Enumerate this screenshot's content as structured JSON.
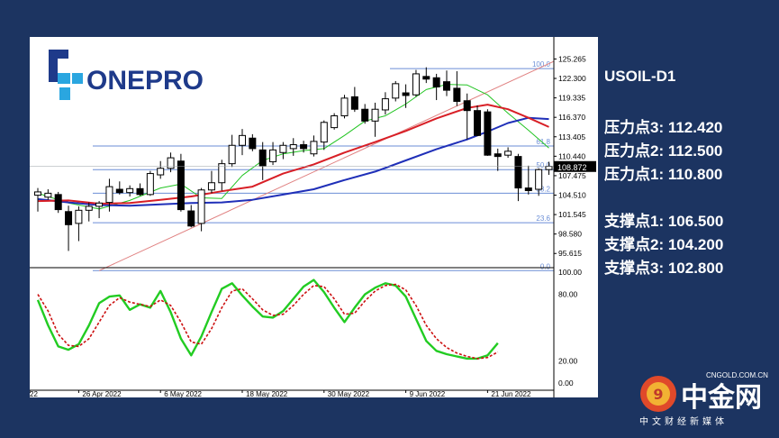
{
  "brand": {
    "logo_text": "ONEPRO"
  },
  "title": "USOIL-D1",
  "resistance": [
    {
      "label": "压力点3: 112.420"
    },
    {
      "label": "压力点2: 112.500"
    },
    {
      "label": "压力点1: 110.800"
    }
  ],
  "support": [
    {
      "label": "支撑点1: 106.500"
    },
    {
      "label": "支撑点2: 104.200"
    },
    {
      "label": "支撑点3: 102.800"
    }
  ],
  "watermark": {
    "name": "中金网",
    "url": "CNGOLD.COM.CN",
    "subtitle": "中文财经新媒体"
  },
  "colors": {
    "background": "#1c3461",
    "ma_fast": "#22c422",
    "ma_mid": "#d81f26",
    "ma_slow": "#1f2fb8",
    "fib": "#6b8ed6",
    "trend": "#e08080",
    "stoch_main": "#22cc22",
    "stoch_signal": "#cc1111"
  },
  "chart_data": [
    {
      "type": "candlestick",
      "symbol": "USOIL",
      "timeframe": "D1",
      "y_ticks": [
        "125.265",
        "122.300",
        "119.335",
        "116.370",
        "113.405",
        "110.440",
        "107.475",
        "104.510",
        "101.545",
        "98.580",
        "95.615"
      ],
      "ylim": [
        94.0,
        126.7
      ],
      "x_labels": [
        "22",
        "26 Apr 2022",
        "6 May 2022",
        "18 May 2022",
        "30 May 2022",
        "9 Jun 2022",
        "21 Jun 2022"
      ],
      "x_label_index": [
        0,
        4,
        12,
        20,
        28,
        36,
        44
      ],
      "current_price": "108.872",
      "candles": [
        {
          "o": 104.5,
          "h": 105.6,
          "l": 102.0,
          "c": 105.0
        },
        {
          "o": 104.2,
          "h": 105.4,
          "l": 103.8,
          "c": 104.8
        },
        {
          "o": 104.6,
          "h": 105.0,
          "l": 101.8,
          "c": 102.3
        },
        {
          "o": 102.0,
          "h": 102.9,
          "l": 96.0,
          "c": 100.0
        },
        {
          "o": 100.2,
          "h": 102.8,
          "l": 97.5,
          "c": 102.2
        },
        {
          "o": 102.2,
          "h": 103.4,
          "l": 100.5,
          "c": 102.8
        },
        {
          "o": 102.8,
          "h": 103.6,
          "l": 101.0,
          "c": 103.3
        },
        {
          "o": 103.4,
          "h": 107.0,
          "l": 102.0,
          "c": 105.8
        },
        {
          "o": 105.4,
          "h": 106.6,
          "l": 104.6,
          "c": 104.9
        },
        {
          "o": 104.9,
          "h": 106.0,
          "l": 104.3,
          "c": 105.5
        },
        {
          "o": 105.5,
          "h": 106.3,
          "l": 104.4,
          "c": 104.6
        },
        {
          "o": 104.6,
          "h": 108.2,
          "l": 104.4,
          "c": 107.8
        },
        {
          "o": 107.6,
          "h": 109.7,
          "l": 107.0,
          "c": 108.6
        },
        {
          "o": 108.6,
          "h": 111.0,
          "l": 108.0,
          "c": 110.2
        },
        {
          "o": 109.7,
          "h": 110.8,
          "l": 102.0,
          "c": 102.3
        },
        {
          "o": 102.1,
          "h": 103.0,
          "l": 99.6,
          "c": 99.8
        },
        {
          "o": 100.2,
          "h": 105.6,
          "l": 99.0,
          "c": 105.3
        },
        {
          "o": 105.3,
          "h": 108.2,
          "l": 104.8,
          "c": 106.4
        },
        {
          "o": 106.4,
          "h": 109.9,
          "l": 105.2,
          "c": 109.3
        },
        {
          "o": 109.3,
          "h": 113.7,
          "l": 108.8,
          "c": 112.1
        },
        {
          "o": 112.1,
          "h": 114.6,
          "l": 110.6,
          "c": 113.6
        },
        {
          "o": 113.2,
          "h": 113.8,
          "l": 111.2,
          "c": 111.6
        },
        {
          "o": 111.4,
          "h": 112.6,
          "l": 106.8,
          "c": 109.0
        },
        {
          "o": 109.6,
          "h": 112.6,
          "l": 109.1,
          "c": 111.4
        },
        {
          "o": 111.0,
          "h": 112.6,
          "l": 110.0,
          "c": 112.1
        },
        {
          "o": 111.6,
          "h": 113.2,
          "l": 110.5,
          "c": 112.2
        },
        {
          "o": 112.2,
          "h": 112.8,
          "l": 111.0,
          "c": 111.6
        },
        {
          "o": 110.8,
          "h": 113.6,
          "l": 110.4,
          "c": 112.7
        },
        {
          "o": 112.6,
          "h": 115.9,
          "l": 111.4,
          "c": 115.6
        },
        {
          "o": 114.8,
          "h": 117.0,
          "l": 114.5,
          "c": 116.6
        },
        {
          "o": 116.6,
          "h": 119.8,
          "l": 116.2,
          "c": 119.3
        },
        {
          "o": 119.5,
          "h": 121.0,
          "l": 117.2,
          "c": 117.6
        },
        {
          "o": 117.6,
          "h": 118.4,
          "l": 115.4,
          "c": 115.8
        },
        {
          "o": 115.8,
          "h": 118.6,
          "l": 113.4,
          "c": 117.6
        },
        {
          "o": 117.5,
          "h": 120.2,
          "l": 116.8,
          "c": 119.2
        },
        {
          "o": 119.3,
          "h": 121.9,
          "l": 118.8,
          "c": 121.5
        },
        {
          "o": 120.1,
          "h": 121.4,
          "l": 117.8,
          "c": 119.7
        },
        {
          "o": 119.8,
          "h": 123.6,
          "l": 119.5,
          "c": 123.0
        },
        {
          "o": 122.6,
          "h": 124.0,
          "l": 121.6,
          "c": 122.2
        },
        {
          "o": 122.4,
          "h": 123.0,
          "l": 119.0,
          "c": 121.0
        },
        {
          "o": 121.8,
          "h": 123.5,
          "l": 119.6,
          "c": 120.5
        },
        {
          "o": 120.8,
          "h": 123.4,
          "l": 118.1,
          "c": 118.8
        },
        {
          "o": 118.9,
          "h": 120.0,
          "l": 113.0,
          "c": 117.4
        },
        {
          "o": 117.4,
          "h": 118.2,
          "l": 113.5,
          "c": 113.6
        },
        {
          "o": 117.2,
          "h": 117.6,
          "l": 110.5,
          "c": 110.6
        },
        {
          "o": 110.8,
          "h": 111.6,
          "l": 108.2,
          "c": 110.4
        },
        {
          "o": 110.6,
          "h": 111.8,
          "l": 110.2,
          "c": 111.2
        },
        {
          "o": 110.4,
          "h": 110.8,
          "l": 103.6,
          "c": 105.6
        },
        {
          "o": 105.6,
          "h": 109.0,
          "l": 104.6,
          "c": 105.2
        },
        {
          "o": 105.4,
          "h": 108.6,
          "l": 104.4,
          "c": 108.4
        },
        {
          "o": 108.4,
          "h": 109.6,
          "l": 107.6,
          "c": 108.9
        }
      ],
      "ma_fast": [
        {
          "i": 0,
          "v": 104.8
        },
        {
          "i": 3,
          "v": 103.3
        },
        {
          "i": 6,
          "v": 102.4
        },
        {
          "i": 9,
          "v": 103.7
        },
        {
          "i": 12,
          "v": 105.6
        },
        {
          "i": 14,
          "v": 106.2
        },
        {
          "i": 16,
          "v": 104.1
        },
        {
          "i": 18,
          "v": 104.0
        },
        {
          "i": 20,
          "v": 107.5
        },
        {
          "i": 22,
          "v": 109.8
        },
        {
          "i": 24,
          "v": 110.8
        },
        {
          "i": 26,
          "v": 111.3
        },
        {
          "i": 28,
          "v": 111.6
        },
        {
          "i": 30,
          "v": 113.6
        },
        {
          "i": 32,
          "v": 115.8
        },
        {
          "i": 34,
          "v": 116.6
        },
        {
          "i": 36,
          "v": 118.4
        },
        {
          "i": 38,
          "v": 120.6
        },
        {
          "i": 40,
          "v": 121.4
        },
        {
          "i": 42,
          "v": 121.3
        },
        {
          "i": 44,
          "v": 119.8
        },
        {
          "i": 46,
          "v": 117.0
        },
        {
          "i": 48,
          "v": 114.4
        },
        {
          "i": 50,
          "v": 111.7
        }
      ],
      "ma_mid": [
        {
          "i": 0,
          "v": 103.6
        },
        {
          "i": 3,
          "v": 103.7
        },
        {
          "i": 6,
          "v": 103.2
        },
        {
          "i": 9,
          "v": 103.3
        },
        {
          "i": 12,
          "v": 103.8
        },
        {
          "i": 15,
          "v": 104.3
        },
        {
          "i": 18,
          "v": 105.1
        },
        {
          "i": 21,
          "v": 105.8
        },
        {
          "i": 24,
          "v": 107.8
        },
        {
          "i": 27,
          "v": 109.2
        },
        {
          "i": 30,
          "v": 111.0
        },
        {
          "i": 33,
          "v": 112.6
        },
        {
          "i": 36,
          "v": 114.3
        },
        {
          "i": 39,
          "v": 116.2
        },
        {
          "i": 42,
          "v": 117.8
        },
        {
          "i": 44,
          "v": 118.3
        },
        {
          "i": 46,
          "v": 117.6
        },
        {
          "i": 48,
          "v": 116.3
        },
        {
          "i": 50,
          "v": 114.9
        }
      ],
      "ma_slow": [
        {
          "i": 0,
          "v": 103.9
        },
        {
          "i": 3,
          "v": 103.4
        },
        {
          "i": 6,
          "v": 103.0
        },
        {
          "i": 9,
          "v": 102.9
        },
        {
          "i": 12,
          "v": 103.1
        },
        {
          "i": 15,
          "v": 103.3
        },
        {
          "i": 18,
          "v": 103.4
        },
        {
          "i": 21,
          "v": 103.8
        },
        {
          "i": 24,
          "v": 104.6
        },
        {
          "i": 27,
          "v": 105.4
        },
        {
          "i": 30,
          "v": 106.8
        },
        {
          "i": 33,
          "v": 108.1
        },
        {
          "i": 36,
          "v": 109.8
        },
        {
          "i": 39,
          "v": 111.5
        },
        {
          "i": 42,
          "v": 113.0
        },
        {
          "i": 44,
          "v": 114.2
        },
        {
          "i": 46,
          "v": 115.5
        },
        {
          "i": 48,
          "v": 116.3
        },
        {
          "i": 50,
          "v": 116.1
        }
      ],
      "fibonacci": [
        {
          "label": "100.0",
          "value": 123.8
        },
        {
          "label": "61.8",
          "value": 112.0
        },
        {
          "label": "50.0",
          "value": 108.4
        },
        {
          "label": "38.2",
          "value": 104.8
        },
        {
          "label": "23.6",
          "value": 100.3
        },
        {
          "label": "0.0",
          "value": 93.0
        }
      ],
      "trendline": [
        {
          "i": 6,
          "v": 93.0
        },
        {
          "i": 50,
          "v": 123.8
        }
      ]
    },
    {
      "type": "line",
      "name": "stochastic",
      "y_ticks": [
        "100.00",
        "80.00",
        "20.00",
        "0.00"
      ],
      "ylim": [
        0,
        100
      ],
      "main": [
        {
          "i": 0,
          "v": 75
        },
        {
          "i": 1,
          "v": 52
        },
        {
          "i": 2,
          "v": 33
        },
        {
          "i": 3,
          "v": 30
        },
        {
          "i": 4,
          "v": 35
        },
        {
          "i": 5,
          "v": 52
        },
        {
          "i": 6,
          "v": 72
        },
        {
          "i": 7,
          "v": 78
        },
        {
          "i": 8,
          "v": 79
        },
        {
          "i": 9,
          "v": 66
        },
        {
          "i": 10,
          "v": 71
        },
        {
          "i": 11,
          "v": 68
        },
        {
          "i": 12,
          "v": 83
        },
        {
          "i": 13,
          "v": 64
        },
        {
          "i": 14,
          "v": 40
        },
        {
          "i": 15,
          "v": 25
        },
        {
          "i": 16,
          "v": 42
        },
        {
          "i": 17,
          "v": 64
        },
        {
          "i": 18,
          "v": 85
        },
        {
          "i": 19,
          "v": 90
        },
        {
          "i": 20,
          "v": 79
        },
        {
          "i": 21,
          "v": 69
        },
        {
          "i": 22,
          "v": 60
        },
        {
          "i": 23,
          "v": 59
        },
        {
          "i": 24,
          "v": 65
        },
        {
          "i": 25,
          "v": 76
        },
        {
          "i": 26,
          "v": 87
        },
        {
          "i": 27,
          "v": 93
        },
        {
          "i": 28,
          "v": 82
        },
        {
          "i": 29,
          "v": 68
        },
        {
          "i": 30,
          "v": 55
        },
        {
          "i": 31,
          "v": 68
        },
        {
          "i": 32,
          "v": 80
        },
        {
          "i": 33,
          "v": 86
        },
        {
          "i": 34,
          "v": 90
        },
        {
          "i": 35,
          "v": 88
        },
        {
          "i": 36,
          "v": 78
        },
        {
          "i": 37,
          "v": 58
        },
        {
          "i": 38,
          "v": 38
        },
        {
          "i": 39,
          "v": 29
        },
        {
          "i": 40,
          "v": 26
        },
        {
          "i": 41,
          "v": 24
        },
        {
          "i": 42,
          "v": 22
        },
        {
          "i": 43,
          "v": 22
        },
        {
          "i": 44,
          "v": 25
        },
        {
          "i": 45,
          "v": 36
        }
      ],
      "signal": [
        {
          "i": 0,
          "v": 80
        },
        {
          "i": 1,
          "v": 65
        },
        {
          "i": 2,
          "v": 44
        },
        {
          "i": 3,
          "v": 34
        },
        {
          "i": 4,
          "v": 33
        },
        {
          "i": 5,
          "v": 40
        },
        {
          "i": 6,
          "v": 55
        },
        {
          "i": 7,
          "v": 70
        },
        {
          "i": 8,
          "v": 77
        },
        {
          "i": 9,
          "v": 73
        },
        {
          "i": 10,
          "v": 71
        },
        {
          "i": 11,
          "v": 69
        },
        {
          "i": 12,
          "v": 75
        },
        {
          "i": 13,
          "v": 70
        },
        {
          "i": 14,
          "v": 55
        },
        {
          "i": 15,
          "v": 37
        },
        {
          "i": 16,
          "v": 35
        },
        {
          "i": 17,
          "v": 49
        },
        {
          "i": 18,
          "v": 68
        },
        {
          "i": 19,
          "v": 83
        },
        {
          "i": 20,
          "v": 85
        },
        {
          "i": 21,
          "v": 76
        },
        {
          "i": 22,
          "v": 66
        },
        {
          "i": 23,
          "v": 61
        },
        {
          "i": 24,
          "v": 62
        },
        {
          "i": 25,
          "v": 70
        },
        {
          "i": 26,
          "v": 80
        },
        {
          "i": 27,
          "v": 88
        },
        {
          "i": 28,
          "v": 87
        },
        {
          "i": 29,
          "v": 76
        },
        {
          "i": 30,
          "v": 62
        },
        {
          "i": 31,
          "v": 63
        },
        {
          "i": 32,
          "v": 74
        },
        {
          "i": 33,
          "v": 83
        },
        {
          "i": 34,
          "v": 88
        },
        {
          "i": 35,
          "v": 89
        },
        {
          "i": 36,
          "v": 84
        },
        {
          "i": 37,
          "v": 70
        },
        {
          "i": 38,
          "v": 52
        },
        {
          "i": 39,
          "v": 40
        },
        {
          "i": 40,
          "v": 32
        },
        {
          "i": 41,
          "v": 27
        },
        {
          "i": 42,
          "v": 24
        },
        {
          "i": 43,
          "v": 22
        },
        {
          "i": 44,
          "v": 23
        },
        {
          "i": 45,
          "v": 28
        }
      ]
    }
  ]
}
